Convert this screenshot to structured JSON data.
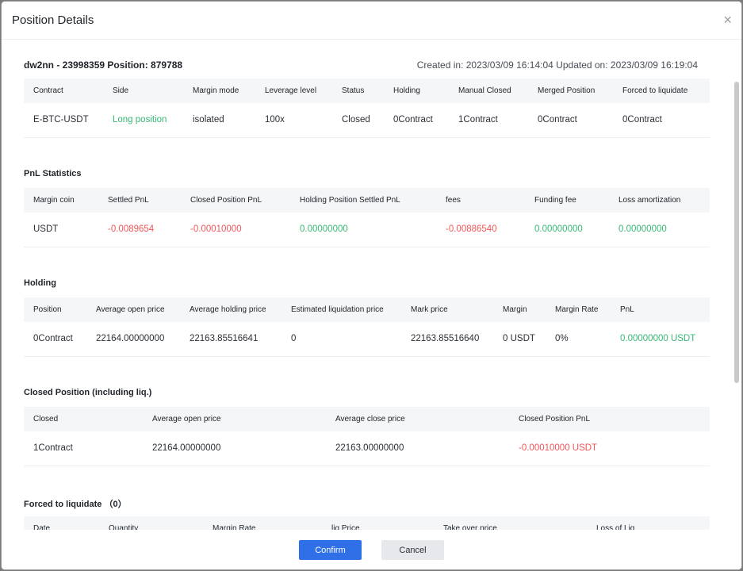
{
  "modal": {
    "title": "Position Details",
    "close_icon": "×"
  },
  "position": {
    "heading": "dw2nn - 23998359 Position: 879788",
    "dates": "Created in: 2023/03/09 16:14:04 Updated on: 2023/03/09 16:19:04"
  },
  "overview": {
    "headers": [
      "Contract",
      "Side",
      "Margin mode",
      "Leverage level",
      "Status",
      "Holding",
      "Manual Closed",
      "Merged Position",
      "Forced to liquidate"
    ],
    "row": [
      "E-BTC-USDT",
      "Long position",
      "isolated",
      "100x",
      "Closed",
      "0Contract",
      "1Contract",
      "0Contract",
      "0Contract"
    ]
  },
  "pnl": {
    "title": "PnL Statistics",
    "headers": [
      "Margin coin",
      "Settled PnL",
      "Closed Position PnL",
      "Holding Position Settled PnL",
      "fees",
      "Funding fee",
      "Loss amortization"
    ],
    "row": [
      "USDT",
      "-0.0089654",
      "-0.00010000",
      "0.00000000",
      "-0.00886540",
      "0.00000000",
      "0.00000000"
    ]
  },
  "holding": {
    "title": "Holding",
    "headers": [
      "Position",
      "Average open price",
      "Average holding price",
      "Estimated liquidation price",
      "Mark price",
      "Margin",
      "Margin Rate",
      "PnL"
    ],
    "row": [
      "0Contract",
      "22164.00000000",
      "22163.85516641",
      "0",
      "22163.85516640",
      "0 USDT",
      "0%",
      "0.00000000 USDT"
    ]
  },
  "closed": {
    "title": "Closed Position (including liq.)",
    "headers": [
      "Closed",
      "Average open price",
      "Average close price",
      "Closed Position PnL"
    ],
    "row": [
      "1Contract",
      "22164.00000000",
      "22163.00000000",
      "-0.00010000 USDT"
    ]
  },
  "liquidate": {
    "title": "Forced to liquidate （0）",
    "headers": [
      "Date",
      "Quantity",
      "Margin Rate",
      "liq Price",
      "Take over price",
      "Loss of Liq"
    ]
  },
  "footer": {
    "confirm_label": "Confirm",
    "cancel_label": "Cancel"
  },
  "colors": {
    "positive": "#36b873",
    "negative": "#f0565a",
    "primary": "#2f6fe8"
  }
}
